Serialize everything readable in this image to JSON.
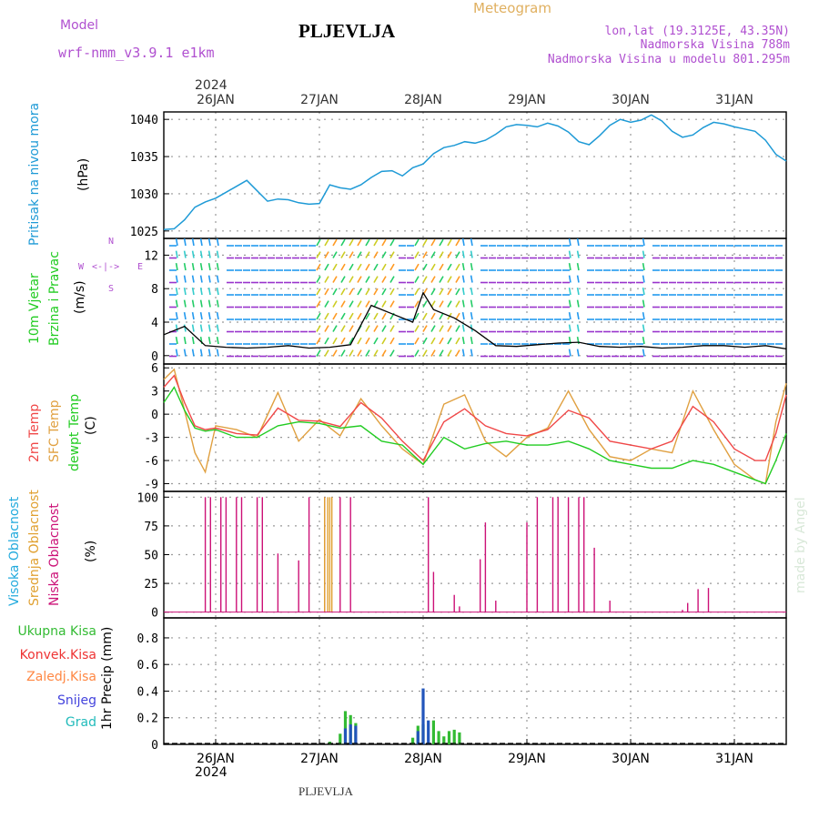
{
  "header": {
    "model_label": "Model",
    "model_name": "wrf-nmm_v3.9.1  e1km",
    "station": "PLJEVLJA",
    "meteogram_label": "Meteogram",
    "lonlat": "lon,lat (19.3125E, 43.35N)",
    "elevation": "Nadmorska Visina 788m",
    "model_elevation": "Nadmorska Visina u modelu 801.295m"
  },
  "footer": {
    "station": "PLJEVLJA",
    "credit": "made by Angel"
  },
  "colors": {
    "pressure": "#1e9ad6",
    "temp2m": "#f04848",
    "sfc_temp": "#e0a040",
    "dewpt": "#22cc22",
    "visoka": "#22aadd",
    "srednja": "#e0a030",
    "niska": "#cc1177",
    "ukupna": "#33bb33",
    "konvek": "#ee3333",
    "zaledj": "#ff8844",
    "snijeg": "#4444dd",
    "grad": "#22bbbb",
    "model_text": "#b050d0"
  },
  "time_axis": {
    "top_year": "2024",
    "bottom_year": "2024",
    "labels": [
      "26JAN",
      "27JAN",
      "28JAN",
      "29JAN",
      "30JAN",
      "31JAN"
    ],
    "x_days": [
      0,
      1,
      2,
      3,
      4,
      5
    ],
    "x_range": [
      -0.5,
      5.5
    ]
  },
  "panels": {
    "pressure": {
      "label": "Pritisak na nivou mora",
      "unit": "(hPa)"
    },
    "wind": {
      "label1": "10m Vjetar",
      "label2": "Brzina i Pravac",
      "unit": "(m/s)",
      "compass": {
        "n": "N",
        "w": "W",
        "e": "E",
        "s": "S",
        "arrows": "<-|->"
      }
    },
    "temp": {
      "label1": "2m Temp",
      "label2": "SFC Temp",
      "label3": "dewpt Temp",
      "unit": "(C)"
    },
    "cloud": {
      "label1": "Visoka Oblacnost",
      "label2": "Srednja Oblacnost",
      "label3": "Niska Oblacnost",
      "unit": "(%)"
    },
    "precip": {
      "legend": [
        "Ukupna Kisa",
        "Konvek.Kisa",
        "Zaledj.Kisa",
        "Snijeg",
        "Grad"
      ],
      "unit": "1hr Precip (mm)"
    }
  },
  "chart_data": [
    {
      "type": "line",
      "panel": "pressure",
      "ylim": [
        1024,
        1041
      ],
      "yticks": [
        1025,
        1030,
        1035,
        1040
      ],
      "series": [
        {
          "values_x": [
            -0.5,
            -0.4,
            -0.3,
            -0.2,
            -0.1,
            0,
            0.1,
            0.2,
            0.3,
            0.4,
            0.5,
            0.6,
            0.7,
            0.8,
            0.9,
            1.0,
            1.1,
            1.2,
            1.3,
            1.4,
            1.5,
            1.6,
            1.7,
            1.8,
            1.9,
            2.0,
            2.1,
            2.2,
            2.3,
            2.4,
            2.5,
            2.6,
            2.7,
            2.8,
            2.9,
            3.0,
            3.1,
            3.2,
            3.3,
            3.4,
            3.5,
            3.6,
            3.7,
            3.8,
            3.9,
            4.0,
            4.1,
            4.2,
            4.3,
            4.4,
            4.5,
            4.6,
            4.7,
            4.8,
            4.9,
            5.0,
            5.1,
            5.2,
            5.3,
            5.4,
            5.5
          ],
          "values": [
            1025.2,
            1025.3,
            1026.5,
            1028.2,
            1028.9,
            1029.4,
            1030.2,
            1031.0,
            1031.8,
            1030.4,
            1029.0,
            1029.3,
            1029.2,
            1028.8,
            1028.6,
            1028.7,
            1031.2,
            1030.8,
            1030.6,
            1031.2,
            1032.2,
            1033.0,
            1033.1,
            1032.4,
            1033.5,
            1034.0,
            1035.4,
            1036.2,
            1036.5,
            1037.0,
            1036.8,
            1037.2,
            1038.0,
            1039.0,
            1039.3,
            1039.2,
            1039.0,
            1039.5,
            1039.1,
            1038.3,
            1037.0,
            1036.6,
            1037.8,
            1039.2,
            1040.0,
            1039.6,
            1039.9,
            1040.6,
            1039.8,
            1038.4,
            1037.6,
            1037.9,
            1038.9,
            1039.6,
            1039.4,
            1039.0,
            1038.7,
            1038.4,
            1037.2,
            1035.3,
            1034.4
          ]
        }
      ]
    },
    {
      "type": "line",
      "panel": "wind",
      "ylim": [
        -1,
        14
      ],
      "yticks": [
        0,
        4,
        8,
        12
      ],
      "series": [
        {
          "name": "10m Vjetar",
          "values_x": [
            -0.5,
            -0.3,
            -0.1,
            0.1,
            0.3,
            0.5,
            0.7,
            0.9,
            1.1,
            1.3,
            1.5,
            1.7,
            1.9,
            2.0,
            2.1,
            2.3,
            2.5,
            2.7,
            2.9,
            3.1,
            3.3,
            3.5,
            3.7,
            3.9,
            4.1,
            4.3,
            4.5,
            4.7,
            4.9,
            5.1,
            5.3,
            5.5
          ],
          "values": [
            2.5,
            3.5,
            1.2,
            1.0,
            0.9,
            1.0,
            1.2,
            0.9,
            1.0,
            1.3,
            6.0,
            5.0,
            4.0,
            7.5,
            5.5,
            4.5,
            3.0,
            1.2,
            1.1,
            1.3,
            1.5,
            1.6,
            1.1,
            1.0,
            1.1,
            0.9,
            1.0,
            1.2,
            1.2,
            1.0,
            1.2,
            0.8
          ]
        }
      ]
    },
    {
      "type": "line",
      "panel": "temp",
      "ylim": [
        -10,
        6.5
      ],
      "yticks": [
        -9,
        -6,
        -3,
        0,
        3,
        6
      ],
      "series": [
        {
          "name": "2m Temp",
          "values_x": [
            -0.5,
            -0.4,
            -0.3,
            -0.2,
            -0.1,
            0,
            0.2,
            0.4,
            0.6,
            0.8,
            1.0,
            1.2,
            1.4,
            1.6,
            1.8,
            2.0,
            2.2,
            2.4,
            2.6,
            2.8,
            3.0,
            3.2,
            3.4,
            3.6,
            3.8,
            4.0,
            4.2,
            4.4,
            4.6,
            4.8,
            5.0,
            5.2,
            5.3,
            5.4,
            5.5
          ],
          "values": [
            3.5,
            5.0,
            1.5,
            -1.5,
            -2.0,
            -1.8,
            -2.5,
            -2.7,
            0.8,
            -0.8,
            -0.9,
            -1.6,
            1.5,
            -0.5,
            -3.5,
            -6.0,
            -1.0,
            0.7,
            -1.5,
            -2.5,
            -2.8,
            -2.0,
            0.5,
            -0.5,
            -3.5,
            -4.0,
            -4.5,
            -3.5,
            1.0,
            -1.0,
            -4.5,
            -6.0,
            -6.0,
            -2.5,
            2.5
          ]
        },
        {
          "name": "SFC Temp",
          "values_x": [
            -0.5,
            -0.4,
            -0.3,
            -0.2,
            -0.1,
            0,
            0.2,
            0.4,
            0.6,
            0.8,
            1.0,
            1.2,
            1.4,
            1.6,
            1.8,
            2.0,
            2.2,
            2.4,
            2.6,
            2.8,
            3.0,
            3.2,
            3.4,
            3.6,
            3.8,
            4.0,
            4.2,
            4.4,
            4.6,
            4.8,
            5.0,
            5.2,
            5.3,
            5.4,
            5.5
          ],
          "values": [
            4.5,
            5.8,
            0.5,
            -5.0,
            -7.5,
            -1.5,
            -2.0,
            -3.0,
            2.8,
            -3.5,
            -0.7,
            -2.8,
            2.0,
            -1.5,
            -4.5,
            -6.5,
            1.3,
            2.5,
            -3.5,
            -5.5,
            -3.0,
            -1.8,
            3.0,
            -2.0,
            -5.5,
            -6.0,
            -4.5,
            -5.0,
            3.0,
            -2.0,
            -6.5,
            -8.5,
            -9.0,
            -1.0,
            4.0
          ]
        },
        {
          "name": "dewpt Temp",
          "values_x": [
            -0.5,
            -0.4,
            -0.3,
            -0.2,
            -0.1,
            0,
            0.2,
            0.4,
            0.6,
            0.8,
            1.0,
            1.2,
            1.4,
            1.6,
            1.8,
            2.0,
            2.2,
            2.4,
            2.6,
            2.8,
            3.0,
            3.2,
            3.4,
            3.6,
            3.8,
            4.0,
            4.2,
            4.4,
            4.6,
            4.8,
            5.0,
            5.2,
            5.3,
            5.4,
            5.5
          ],
          "values": [
            1.5,
            3.5,
            0.5,
            -1.8,
            -2.2,
            -2.0,
            -3.0,
            -3.0,
            -1.5,
            -1.0,
            -1.2,
            -1.8,
            -1.5,
            -3.5,
            -4.0,
            -6.5,
            -3.0,
            -4.5,
            -3.8,
            -3.5,
            -4.0,
            -4.0,
            -3.5,
            -4.5,
            -6.0,
            -6.5,
            -7.0,
            -7.0,
            -6.0,
            -6.5,
            -7.5,
            -8.5,
            -9.0,
            -6.0,
            -2.5
          ]
        }
      ]
    },
    {
      "type": "bar",
      "panel": "cloud",
      "ylim": [
        -5,
        105
      ],
      "yticks": [
        0,
        25,
        50,
        75,
        100
      ],
      "series": [
        {
          "name": "Niska Oblacnost",
          "x": [
            -0.1,
            -0.05,
            0.05,
            0.1,
            0.2,
            0.25,
            0.4,
            0.45,
            0.6,
            0.8,
            0.9,
            1.05,
            1.2,
            1.3,
            2.05,
            2.1,
            2.3,
            2.35,
            2.55,
            2.6,
            2.7,
            3.0,
            3.1,
            3.25,
            3.3,
            3.4,
            3.5,
            3.55,
            3.65,
            3.8,
            4.5,
            4.55,
            4.65,
            4.75
          ],
          "values": [
            100,
            100,
            100,
            100,
            100,
            100,
            100,
            100,
            51,
            45,
            100,
            100,
            100,
            100,
            100,
            35,
            15,
            5,
            46,
            78,
            10,
            78,
            100,
            100,
            100,
            100,
            100,
            100,
            56,
            10,
            2,
            8,
            20,
            21
          ]
        },
        {
          "name": "Srednja Oblacnost",
          "x": [
            1.05,
            1.08,
            1.1,
            1.12
          ],
          "values": [
            100,
            100,
            100,
            100
          ]
        },
        {
          "name": "Visoka Oblacnost",
          "x": [],
          "values": []
        }
      ]
    },
    {
      "type": "bar",
      "panel": "precip",
      "ylim": [
        0,
        0.95
      ],
      "yticks": [
        0,
        0.2,
        0.4,
        0.6,
        0.8
      ],
      "series": [
        {
          "name": "Ukupna Kisa",
          "x": [
            1.1,
            1.2,
            1.25,
            1.3,
            1.35,
            1.9,
            1.95,
            2.0,
            2.1,
            2.15,
            2.2,
            2.25,
            2.3,
            2.35
          ],
          "values": [
            0.02,
            0.08,
            0.25,
            0.22,
            0.16,
            0.05,
            0.14,
            0.15,
            0.18,
            0.1,
            0.06,
            0.1,
            0.11,
            0.09
          ]
        },
        {
          "name": "Snijeg",
          "x": [
            1.25,
            1.3,
            1.35,
            1.95,
            2.0,
            2.05
          ],
          "values": [
            0.12,
            0.15,
            0.14,
            0.1,
            0.42,
            0.18
          ]
        }
      ]
    }
  ]
}
